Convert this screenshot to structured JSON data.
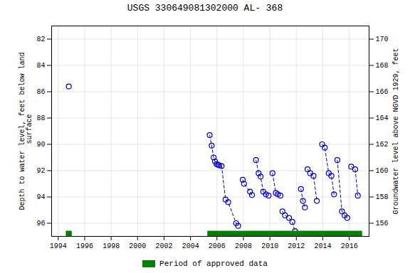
{
  "chart_data": {
    "type": "line",
    "title": "USGS 330649081302000 AL- 368",
    "ylabel": "Depth to water level, feet below land\n surface",
    "y2label": "Groundwater level above NGVD 1929, feet",
    "xlim": [
      1993.5,
      2017.5
    ],
    "xticks": [
      1994,
      1996,
      1998,
      2000,
      2002,
      2004,
      2006,
      2008,
      2010,
      2012,
      2014,
      2016
    ],
    "ylim": [
      97.0,
      81.0
    ],
    "yticks": [
      82,
      84,
      86,
      88,
      90,
      92,
      94,
      96
    ],
    "y2lim": [
      155.0,
      171.0
    ],
    "y2ticks": [
      170,
      168,
      166,
      164,
      162,
      160,
      158,
      156
    ],
    "grid": true,
    "legend": "bottom",
    "x": [
      1994.8,
      null,
      2005.45,
      2005.6,
      2005.75,
      2005.85,
      2005.97,
      2006.07,
      2006.17,
      2006.35,
      2006.65,
      2006.85,
      2007.45,
      2007.6,
      null,
      2007.95,
      2008.05,
      2008.5,
      2008.65,
      null,
      2008.95,
      2009.15,
      2009.3,
      2009.5,
      2009.7,
      2009.9,
      null,
      2010.2,
      2010.45,
      2010.6,
      2010.8,
      null,
      2010.95,
      2011.15,
      2011.45,
      2011.7,
      2011.9,
      null,
      2012.35,
      2012.5,
      2012.65,
      null,
      2012.85,
      2013.05,
      2013.3,
      2013.55,
      null,
      2013.95,
      2014.15,
      2014.45,
      2014.65,
      2014.85,
      null,
      2015.1,
      2015.45,
      2015.65,
      2015.85,
      null,
      2016.15,
      2016.45,
      2016.65
    ],
    "series": [
      {
        "color": "#0000CC",
        "line_style": "dashed",
        "marker": "circle",
        "values": [
          85.6,
          null,
          89.3,
          90.1,
          91.0,
          91.3,
          91.5,
          91.55,
          91.6,
          91.65,
          94.2,
          94.4,
          96.0,
          96.2,
          null,
          92.7,
          93.0,
          93.6,
          93.85,
          null,
          91.2,
          92.2,
          92.45,
          93.6,
          93.8,
          93.9,
          null,
          92.2,
          93.7,
          93.8,
          93.9,
          null,
          95.1,
          95.4,
          95.6,
          95.9,
          96.6,
          null,
          93.4,
          94.3,
          94.8,
          null,
          91.9,
          92.2,
          92.4,
          94.3,
          null,
          90.0,
          90.25,
          92.2,
          92.4,
          93.8,
          null,
          91.2,
          95.1,
          95.4,
          95.6,
          null,
          91.7,
          91.9,
          93.9
        ]
      },
      {
        "name": "Period of approved data",
        "type": "span",
        "color": "#008000",
        "values": [
          [
            1994.6,
            1995.05
          ],
          [
            2005.3,
            2017.0
          ]
        ]
      }
    ]
  }
}
